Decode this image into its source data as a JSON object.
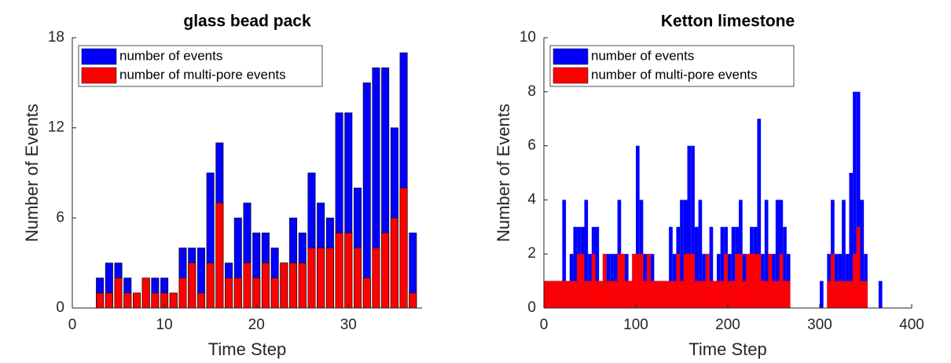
{
  "chart_data": [
    {
      "type": "bar",
      "title": "glass bead pack",
      "xlabel": "Time Step",
      "ylabel": "Number of Events",
      "x": [
        1,
        2,
        3,
        4,
        5,
        6,
        7,
        8,
        9,
        10,
        11,
        12,
        13,
        14,
        15,
        16,
        17,
        18,
        19,
        20,
        21,
        22,
        23,
        24,
        25,
        26,
        27,
        28,
        29,
        30,
        31,
        32,
        33,
        34,
        35,
        36,
        37
      ],
      "series": [
        {
          "name": "number of events",
          "color": "#0000ff",
          "values": [
            0,
            0,
            2,
            3,
            3,
            2,
            1,
            2,
            2,
            2,
            1,
            4,
            4,
            4,
            9,
            11,
            3,
            6,
            7,
            5,
            5,
            4,
            3,
            6,
            5,
            9,
            7,
            6,
            13,
            13,
            8,
            15,
            16,
            16,
            12,
            17,
            5
          ]
        },
        {
          "name": "number of multi-pore events",
          "color": "#ff0000",
          "values": [
            0,
            0,
            1,
            1,
            2,
            1,
            1,
            2,
            1,
            1,
            1,
            2,
            3,
            1,
            3,
            7,
            2,
            2,
            3,
            2,
            3,
            2,
            3,
            3,
            3,
            4,
            4,
            4,
            5,
            5,
            4,
            2,
            4,
            5,
            6,
            8,
            1
          ]
        }
      ],
      "xlim": [
        0,
        38
      ],
      "xticks": [
        0,
        10,
        20,
        30
      ],
      "ylim": [
        0,
        18
      ],
      "yticks": [
        0,
        6,
        12,
        18
      ],
      "legend": "upper left"
    },
    {
      "type": "bar",
      "title": "Ketton limestone",
      "xlabel": "Time Step",
      "ylabel": "Number of Events",
      "x": [
        2,
        6,
        10,
        14,
        18,
        22,
        26,
        30,
        34,
        38,
        42,
        46,
        50,
        54,
        58,
        62,
        66,
        70,
        74,
        78,
        82,
        86,
        90,
        94,
        98,
        102,
        106,
        110,
        114,
        118,
        122,
        126,
        130,
        134,
        138,
        142,
        146,
        150,
        154,
        158,
        162,
        166,
        170,
        174,
        178,
        182,
        186,
        190,
        194,
        198,
        202,
        206,
        210,
        214,
        218,
        222,
        226,
        230,
        234,
        238,
        242,
        246,
        250,
        254,
        258,
        262,
        266,
        270,
        274,
        278,
        282,
        286,
        290,
        294,
        298,
        302,
        306,
        310,
        314,
        318,
        322,
        326,
        330,
        334,
        338,
        342,
        346,
        350,
        354,
        358,
        362,
        366
      ],
      "series": [
        {
          "name": "number of events",
          "color": "#0000ff",
          "values": [
            1,
            1,
            1,
            1,
            1,
            4,
            1,
            2,
            3,
            3,
            3,
            4,
            2,
            3,
            3,
            1,
            2,
            2,
            2,
            2,
            4,
            2,
            2,
            1,
            2,
            6,
            4,
            2,
            2,
            2,
            1,
            1,
            1,
            1,
            3,
            2,
            3,
            4,
            4,
            6,
            6,
            3,
            4,
            2,
            2,
            3,
            1,
            2,
            3,
            3,
            2,
            3,
            3,
            4,
            2,
            2,
            3,
            3,
            7,
            2,
            4,
            2,
            2,
            4,
            4,
            3,
            2,
            0,
            0,
            0,
            0,
            0,
            0,
            0,
            0,
            1,
            0,
            2,
            4,
            2,
            2,
            4,
            2,
            5,
            8,
            8,
            4,
            2,
            0,
            0,
            0,
            1
          ]
        },
        {
          "name": "number of multi-pore events",
          "color": "#ff0000",
          "values": [
            1,
            1,
            1,
            1,
            1,
            1,
            1,
            1,
            1,
            2,
            2,
            1,
            1,
            2,
            1,
            1,
            2,
            1,
            1,
            1,
            2,
            2,
            1,
            1,
            2,
            2,
            2,
            1,
            2,
            1,
            1,
            1,
            1,
            1,
            1,
            1,
            2,
            1,
            2,
            2,
            2,
            1,
            1,
            1,
            2,
            1,
            1,
            1,
            1,
            2,
            1,
            1,
            2,
            2,
            1,
            2,
            2,
            2,
            2,
            1,
            1,
            2,
            1,
            1,
            2,
            1,
            1,
            0,
            0,
            0,
            0,
            0,
            0,
            0,
            0,
            0,
            0,
            1,
            2,
            1,
            1,
            1,
            1,
            1,
            2,
            3,
            1,
            1,
            0,
            0,
            0,
            0
          ]
        }
      ],
      "xlim": [
        0,
        400
      ],
      "xticks": [
        0,
        100,
        200,
        300,
        400
      ],
      "ylim": [
        0,
        10
      ],
      "yticks": [
        0,
        2,
        4,
        6,
        8,
        10
      ],
      "legend": "upper left"
    }
  ]
}
